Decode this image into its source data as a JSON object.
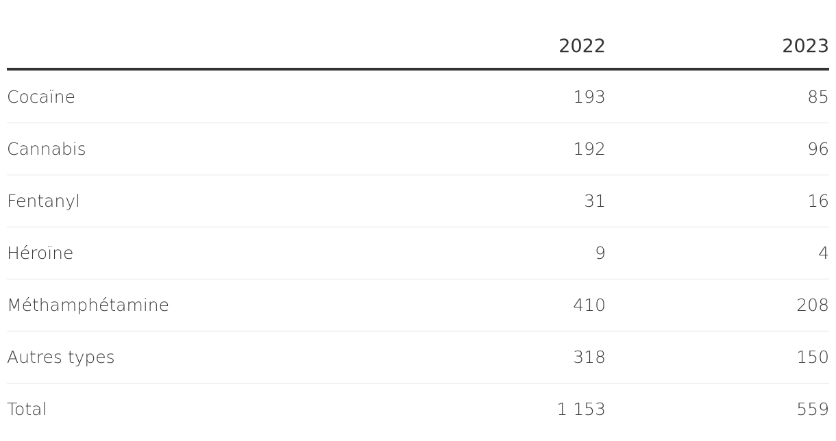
{
  "table": {
    "columns": [
      "2022",
      "2023"
    ],
    "rows": [
      {
        "label": "Cocaïne",
        "cells": [
          "193",
          "85"
        ]
      },
      {
        "label": "Cannabis",
        "cells": [
          "192",
          "96"
        ]
      },
      {
        "label": "Fentanyl",
        "cells": [
          "31",
          "16"
        ]
      },
      {
        "label": "Héroïne",
        "cells": [
          "9",
          "4"
        ]
      },
      {
        "label": "Méthamphétamine",
        "cells": [
          "410",
          "208"
        ]
      },
      {
        "label": "Autres types",
        "cells": [
          "318",
          "150"
        ]
      },
      {
        "label": "Total",
        "cells": [
          "1 153",
          "559"
        ]
      }
    ]
  }
}
